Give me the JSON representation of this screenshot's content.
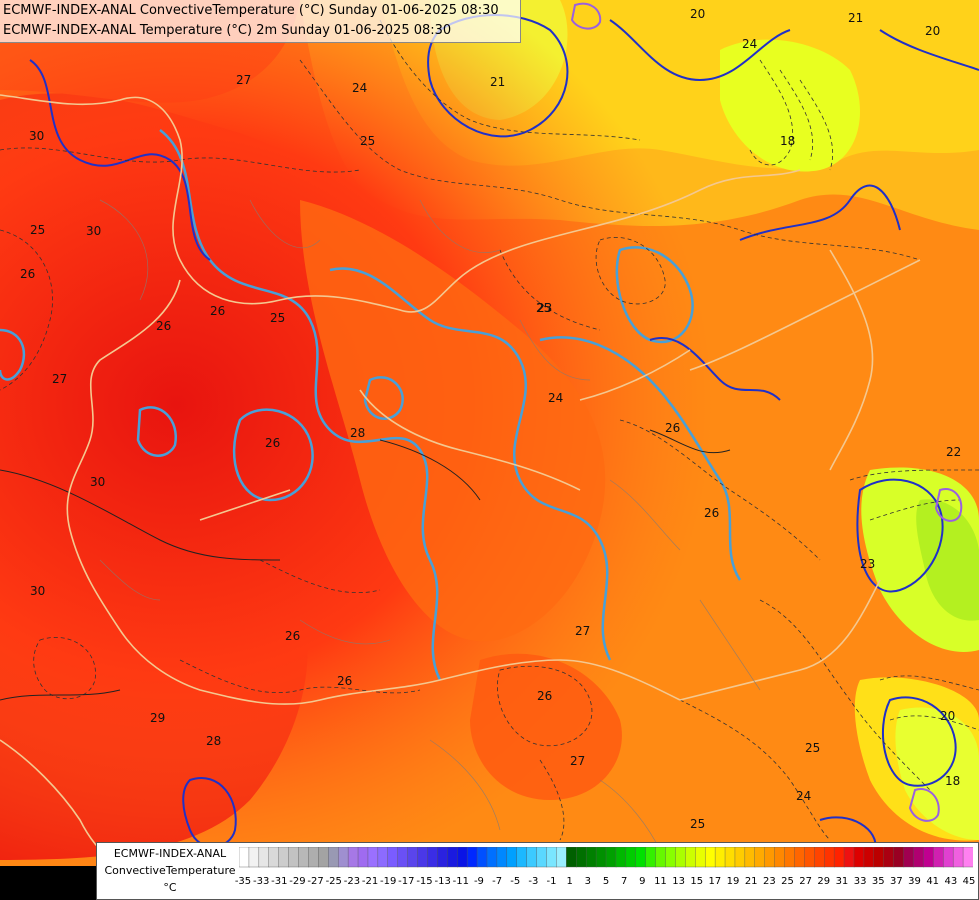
{
  "titles": {
    "line1": "ECMWF-INDEX-ANAL ConvectiveTemperature (°C) Sunday 01-06-2025 08:30",
    "line2": "ECMWF-INDEX-ANAL Temperature (°C) 2m Sunday 01-06-2025 08:30"
  },
  "legend": {
    "model": "ECMWF-INDEX-ANAL",
    "variable": "ConvectiveTemperature",
    "unit": "°C",
    "ticks": [
      "-35",
      "-33",
      "-31",
      "-29",
      "-27",
      "-25",
      "-23",
      "-21",
      "-19",
      "-17",
      "-15",
      "-13",
      "-11",
      "-9",
      "-7",
      "-5",
      "-3",
      "-1",
      "1",
      "3",
      "5",
      "7",
      "9",
      "11",
      "13",
      "15",
      "17",
      "19",
      "21",
      "23",
      "25",
      "27",
      "29",
      "31",
      "33",
      "35",
      "37",
      "39",
      "41",
      "43",
      "45"
    ],
    "colors": [
      "#ffffff",
      "#f2f2f2",
      "#e6e6e6",
      "#d9d9d9",
      "#cccccc",
      "#c2c2c2",
      "#b8b8b8",
      "#aeaeae",
      "#a3a3a3",
      "#9999b3",
      "#9f8fd0",
      "#a678e6",
      "#9f6bf0",
      "#9a70ff",
      "#8c6bff",
      "#7a5cff",
      "#6a50f5",
      "#5a45ec",
      "#4a38e8",
      "#3a2de6",
      "#2a22e0",
      "#1a1ae0",
      "#0a14e6",
      "#0028ff",
      "#0050ff",
      "#0070ff",
      "#0088ff",
      "#00a0ff",
      "#1cb8ff",
      "#3ccaff",
      "#5ad8ff",
      "#7ae6ff",
      "#9aefff",
      "#006000",
      "#007000",
      "#008000",
      "#009000",
      "#00a000",
      "#00b800",
      "#00cc00",
      "#00e000",
      "#33f000",
      "#66f800",
      "#88ff00",
      "#aaff00",
      "#ccff00",
      "#e8ff00",
      "#ffff00",
      "#ffee00",
      "#ffdd00",
      "#ffcc00",
      "#ffbb00",
      "#ffaa00",
      "#ff9900",
      "#ff8800",
      "#ff7700",
      "#ff6600",
      "#ff5500",
      "#ff4400",
      "#ff3300",
      "#ff2200",
      "#ee1111",
      "#dd0000",
      "#cc0000",
      "#bb0000",
      "#aa0011",
      "#990022",
      "#a00050",
      "#b00070",
      "#c00090",
      "#d020b0",
      "#e040d0",
      "#f060e0",
      "#ff80f0"
    ]
  },
  "map_labels": [
    {
      "text": "20"
    },
    {
      "text": "21"
    },
    {
      "text": "24"
    },
    {
      "text": "18"
    },
    {
      "text": "20"
    },
    {
      "text": "21"
    },
    {
      "text": "24"
    },
    {
      "text": "27"
    },
    {
      "text": "26"
    },
    {
      "text": "25"
    },
    {
      "text": "23"
    },
    {
      "text": "25"
    },
    {
      "text": "26"
    },
    {
      "text": "30"
    },
    {
      "text": "26"
    },
    {
      "text": "25"
    },
    {
      "text": "27"
    },
    {
      "text": "28"
    },
    {
      "text": "26"
    },
    {
      "text": "26"
    },
    {
      "text": "30"
    },
    {
      "text": "30"
    },
    {
      "text": "28"
    },
    {
      "text": "29"
    },
    {
      "text": "26"
    },
    {
      "text": "26"
    },
    {
      "text": "26"
    },
    {
      "text": "27"
    },
    {
      "text": "25"
    },
    {
      "text": "24"
    },
    {
      "text": "25"
    },
    {
      "text": "23"
    },
    {
      "text": "22"
    },
    {
      "text": "20"
    },
    {
      "text": "18"
    },
    {
      "text": "26"
    },
    {
      "text": "24"
    },
    {
      "text": "30"
    },
    {
      "text": "27"
    },
    {
      "text": "25"
    }
  ]
}
